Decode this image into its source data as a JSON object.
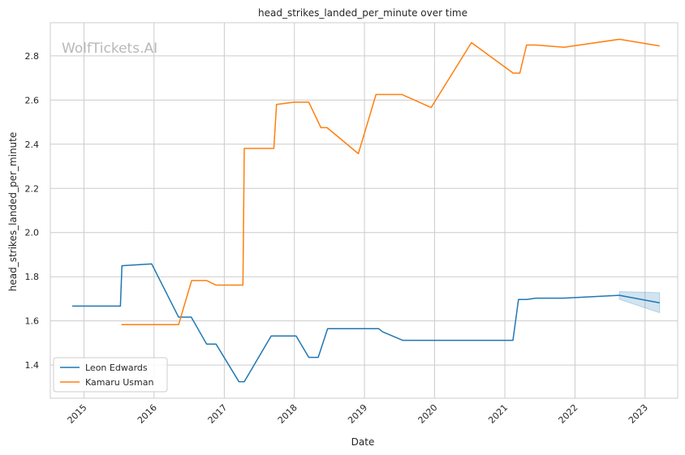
{
  "watermark": "WolfTickets.AI",
  "chart_data": {
    "type": "line",
    "title": "head_strikes_landed_per_minute over time",
    "xlabel": "Date",
    "ylabel": "head_strikes_landed_per_minute",
    "xlim": [
      "2014-07-10",
      "2023-06-20"
    ],
    "ylim": [
      1.25,
      2.95
    ],
    "x_tick_labels": [
      "2015",
      "2016",
      "2017",
      "2018",
      "2019",
      "2020",
      "2021",
      "2022",
      "2023"
    ],
    "y_tick_labels": [
      "1.4",
      "1.6",
      "1.8",
      "2.0",
      "2.2",
      "2.4",
      "2.6",
      "2.8"
    ],
    "grid": true,
    "legend_position": "lower-left",
    "series": [
      {
        "name": "Leon Edwards",
        "color": "#1f77b4",
        "band_color": "#1f77b4",
        "points": [
          [
            "2014-11-01",
            1.667
          ],
          [
            "2015-07-10",
            1.667
          ],
          [
            "2015-07-18",
            1.85
          ],
          [
            "2015-12-20",
            1.858
          ],
          [
            "2016-05-08",
            1.617
          ],
          [
            "2016-07-13",
            1.617
          ],
          [
            "2016-10-01",
            1.495
          ],
          [
            "2016-11-19",
            1.495
          ],
          [
            "2017-03-18",
            1.325
          ],
          [
            "2017-04-15",
            1.325
          ],
          [
            "2017-09-02",
            1.532
          ],
          [
            "2018-01-10",
            1.532
          ],
          [
            "2018-03-17",
            1.435
          ],
          [
            "2018-05-05",
            1.435
          ],
          [
            "2018-06-23",
            1.565
          ],
          [
            "2019-03-16",
            1.565
          ],
          [
            "2019-04-05",
            1.551
          ],
          [
            "2019-07-20",
            1.512
          ],
          [
            "2021-02-12",
            1.512
          ],
          [
            "2021-03-13",
            1.697
          ],
          [
            "2021-04-25",
            1.697
          ],
          [
            "2021-06-12",
            1.703
          ],
          [
            "2021-11-01",
            1.703
          ],
          [
            "2022-08-20",
            1.716
          ],
          [
            "2023-03-18",
            1.682
          ]
        ],
        "band": [
          [
            "2022-08-20",
            1.698,
            1.733
          ],
          [
            "2023-03-18",
            1.637,
            1.728
          ]
        ]
      },
      {
        "name": "Kamaru Usman",
        "color": "#ff7f0e",
        "points": [
          [
            "2015-07-15",
            1.583
          ],
          [
            "2016-05-08",
            1.583
          ],
          [
            "2016-07-15",
            1.783
          ],
          [
            "2016-09-30",
            1.783
          ],
          [
            "2016-11-19",
            1.762
          ],
          [
            "2017-04-08",
            1.762
          ],
          [
            "2017-04-15",
            2.381
          ],
          [
            "2017-09-16",
            2.381
          ],
          [
            "2017-09-30",
            2.58
          ],
          [
            "2017-12-30",
            2.59
          ],
          [
            "2018-03-17",
            2.59
          ],
          [
            "2018-05-19",
            2.475
          ],
          [
            "2018-06-20",
            2.475
          ],
          [
            "2018-11-30",
            2.357
          ],
          [
            "2019-03-02",
            2.625
          ],
          [
            "2019-07-15",
            2.625
          ],
          [
            "2019-12-14",
            2.566
          ],
          [
            "2020-07-11",
            2.86
          ],
          [
            "2021-02-13",
            2.722
          ],
          [
            "2021-03-20",
            2.722
          ],
          [
            "2021-04-24",
            2.849
          ],
          [
            "2021-06-10",
            2.849
          ],
          [
            "2021-11-06",
            2.839
          ],
          [
            "2022-08-20",
            2.875
          ],
          [
            "2023-03-18",
            2.845
          ]
        ]
      }
    ]
  }
}
